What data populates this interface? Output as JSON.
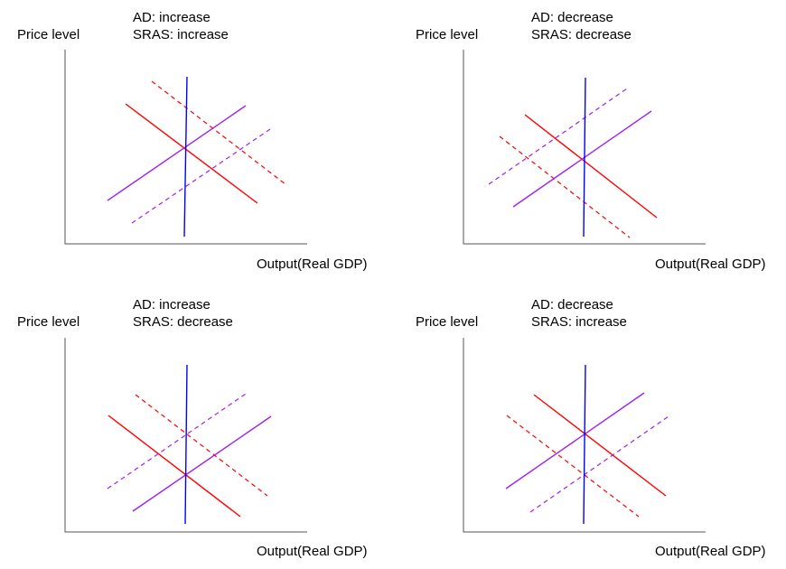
{
  "colors": {
    "axis": "#555555",
    "aggregate_demand": "#ff0000",
    "short_run_supply": "#a020f0",
    "long_run_supply": "#0000ff"
  },
  "panels": [
    {
      "title_ad": "AD: increase",
      "title_sras": "SRAS: increase",
      "y_label": "Price level",
      "x_label": "Output(Real GDP)"
    },
    {
      "title_ad": "AD: decrease",
      "title_sras": "SRAS: decrease",
      "y_label": "Price level",
      "x_label": "Output(Real GDP)"
    },
    {
      "title_ad": "AD: increase",
      "title_sras": "SRAS: decrease",
      "y_label": "Price level",
      "x_label": "Output(Real GDP)"
    },
    {
      "title_ad": "AD: decrease",
      "title_sras": "SRAS: increase",
      "y_label": "Price level",
      "x_label": "Output(Real GDP)"
    }
  ]
}
